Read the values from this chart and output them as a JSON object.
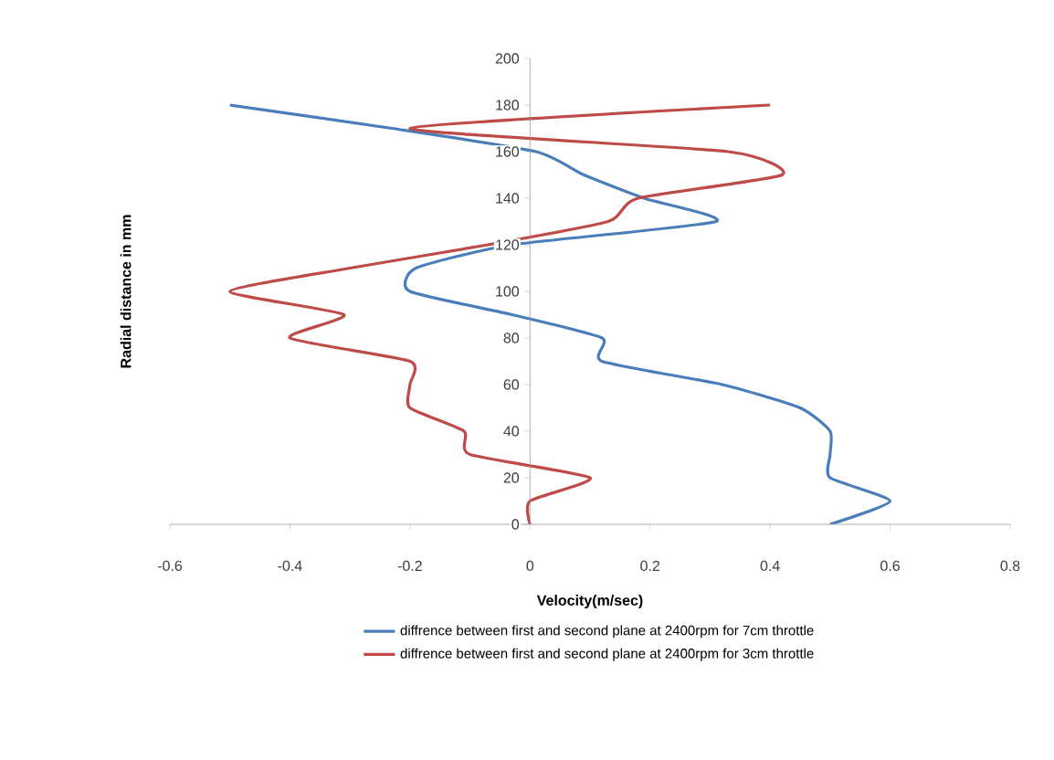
{
  "chart_data": {
    "type": "line",
    "xlabel": "Velocity(m/sec)",
    "ylabel": "Radial distance  in mm",
    "xlim": [
      -0.6,
      0.8
    ],
    "xticks": [
      -0.6,
      -0.4,
      -0.2,
      0,
      0.2,
      0.4,
      0.6,
      0.8
    ],
    "ylim": [
      0,
      200
    ],
    "yticks": [
      0,
      20,
      40,
      60,
      80,
      100,
      120,
      140,
      160,
      180,
      200
    ],
    "grid": false,
    "legend": "bottom",
    "marker": "none",
    "line_style": "solid",
    "series": [
      {
        "name": "diffrence between first and second plane at 2400rpm for 7cm throttle",
        "color": "#4a7ebb",
        "x": [
          0.5,
          0.6,
          0.5,
          0.5,
          0.5,
          0.45,
          0.32,
          0.12,
          0.12,
          -0.03,
          -0.2,
          -0.19,
          -0.03,
          0.31,
          0.19,
          0.09,
          0.01,
          -0.23,
          -0.5
        ],
        "values": [
          0,
          10,
          20,
          30,
          40,
          50,
          60,
          70,
          80,
          90,
          100,
          110,
          120,
          130,
          140,
          150,
          160,
          170,
          180
        ]
      },
      {
        "name": "diffrence between first and second plane at 2400rpm for 3cm throttle",
        "color": "#be4b48",
        "x": [
          0,
          0,
          0.1,
          -0.1,
          -0.11,
          -0.2,
          -0.2,
          -0.2,
          -0.4,
          -0.31,
          -0.5,
          -0.3,
          -0.07,
          0.13,
          0.18,
          0.42,
          0.33,
          -0.2,
          0.4
        ],
        "values": [
          0,
          10,
          20,
          30,
          40,
          50,
          60,
          70,
          80,
          90,
          100,
          110,
          120,
          130,
          140,
          150,
          160,
          170,
          180
        ]
      }
    ]
  }
}
